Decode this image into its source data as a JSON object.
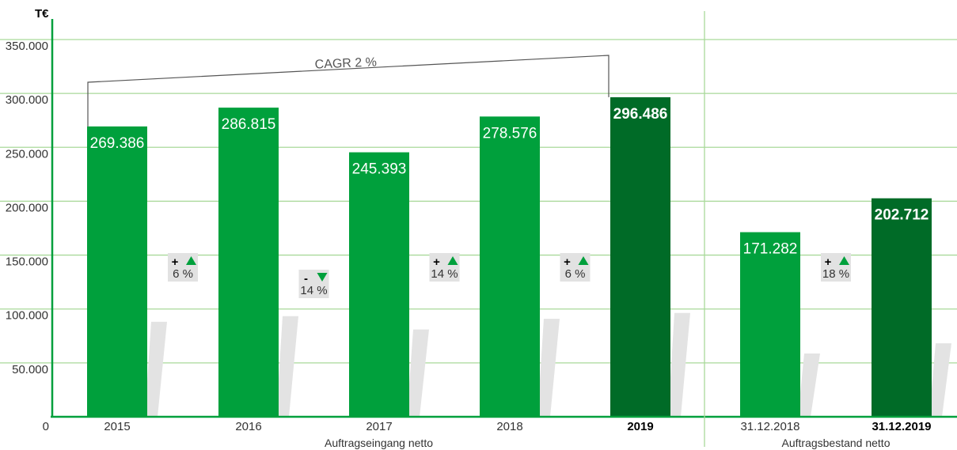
{
  "chart_data": {
    "type": "bar",
    "unit_label": "T€",
    "ylim": [
      0,
      350000
    ],
    "yticks": [
      "0",
      "50.000",
      "100.000",
      "150.000",
      "200.000",
      "250.000",
      "300.000",
      "350.000"
    ],
    "grid": true,
    "groups": [
      {
        "label": "Auftragseingang netto",
        "bars": [
          {
            "category": "2015",
            "value": 269386,
            "value_label": "269.386",
            "highlight": false
          },
          {
            "category": "2016",
            "value": 286815,
            "value_label": "286.815",
            "highlight": false
          },
          {
            "category": "2017",
            "value": 245393,
            "value_label": "245.393",
            "highlight": false
          },
          {
            "category": "2018",
            "value": 278576,
            "value_label": "278.576",
            "highlight": false
          },
          {
            "category": "2019",
            "value": 296486,
            "value_label": "296.486",
            "highlight": true
          }
        ]
      },
      {
        "label": "Auftragsbestand netto",
        "bars": [
          {
            "category": "31.12.2018",
            "value": 171282,
            "value_label": "171.282",
            "highlight": false
          },
          {
            "category": "31.12.2019",
            "value": 202712,
            "value_label": "202.712",
            "highlight": true
          }
        ]
      }
    ],
    "changes": [
      {
        "sign": "+",
        "direction": "up",
        "percent": "6 %"
      },
      {
        "sign": "-",
        "direction": "down",
        "percent": "14 %"
      },
      {
        "sign": "+",
        "direction": "up",
        "percent": "14 %"
      },
      {
        "sign": "+",
        "direction": "up",
        "percent": "6 %"
      },
      {
        "sign": "+",
        "direction": "up",
        "percent": "18 %"
      }
    ],
    "annotation": "CAGR 2 %",
    "colors": {
      "bar": "#00a03c",
      "bar_highlight": "#006b27",
      "grid": "#a9d99a",
      "axis": "#00a03c",
      "change_box": "#e2e2e2",
      "arrow": "#00a03c",
      "shadow": "#e3e3e3"
    }
  }
}
